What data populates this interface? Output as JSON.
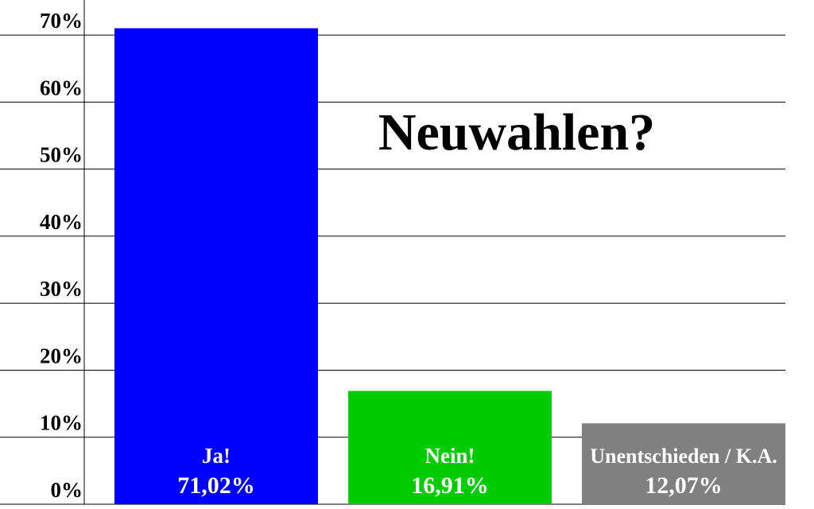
{
  "chart_data": {
    "type": "bar",
    "title": "Neuwahlen?",
    "categories": [
      "Ja!",
      "Nein!",
      "Unentschieden / K.A."
    ],
    "values": [
      71.02,
      16.91,
      12.07
    ],
    "value_labels": [
      "71,02%",
      "16,91%",
      "12,07%"
    ],
    "colors": [
      "#0000ff",
      "#00cc00",
      "#808080"
    ],
    "ylim": [
      0,
      75
    ],
    "yticks": [
      {
        "value": 0,
        "label": "0%"
      },
      {
        "value": 10,
        "label": "10%"
      },
      {
        "value": 20,
        "label": "20%"
      },
      {
        "value": 30,
        "label": "30%"
      },
      {
        "value": 40,
        "label": "40%"
      },
      {
        "value": 50,
        "label": "50%"
      },
      {
        "value": 60,
        "label": "60%"
      },
      {
        "value": 70,
        "label": "70%"
      }
    ],
    "grid": true
  }
}
